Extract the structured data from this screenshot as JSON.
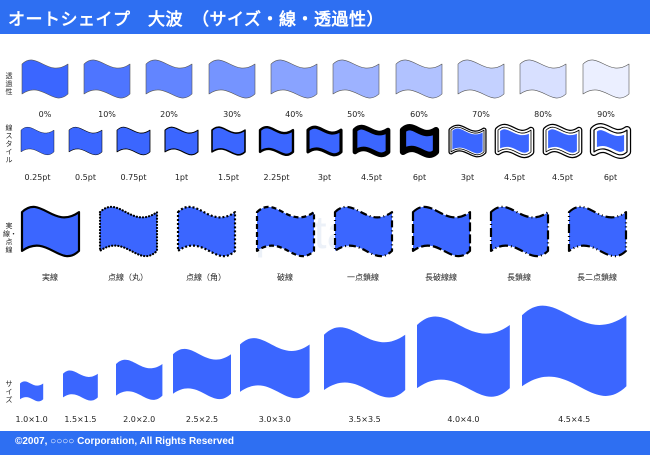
{
  "header": {
    "title": "オートシェイプ　大波　（サイズ・線・透過性）"
  },
  "row_labels": {
    "transparency": "透過性",
    "line_style": "線スタイル",
    "dash": "実線・点線",
    "size": "サイズ"
  },
  "colors": {
    "accent": "#2e6ff2",
    "fill": "#3b66ff",
    "outline": "#000000"
  },
  "transparency": {
    "labels": [
      "0%",
      "10%",
      "20%",
      "30%",
      "40%",
      "50%",
      "60%",
      "70%",
      "80%",
      "90%"
    ],
    "values": [
      0,
      10,
      20,
      30,
      40,
      50,
      60,
      70,
      80,
      90
    ]
  },
  "line_styles": {
    "labels": [
      "0.25pt",
      "0.5pt",
      "0.75pt",
      "1pt",
      "1.5pt",
      "2.25pt",
      "3pt",
      "4.5pt",
      "6pt",
      "3pt",
      "4.5pt",
      "4.5pt",
      "6pt"
    ],
    "values": [
      0.25,
      0.5,
      0.75,
      1,
      1.5,
      2.25,
      3,
      4.5,
      6,
      3,
      4.5,
      4.5,
      6
    ]
  },
  "dash_styles": {
    "labels": [
      "実線",
      "点線（丸）",
      "点線（角）",
      "破線",
      "一点鎖線",
      "長破線線",
      "長鎖線",
      "長二点鎖線"
    ]
  },
  "sizes": {
    "labels": [
      "1.0×1.0",
      "1.5×1.5",
      "2.0×2.0",
      "2.5×2.5",
      "3.0×3.0",
      "3.5×3.5",
      "4.0×4.0",
      "4.5×4.5"
    ],
    "values": [
      1.0,
      1.5,
      2.0,
      2.5,
      3.0,
      3.5,
      4.0,
      4.5
    ]
  },
  "footer": {
    "copyright": "©2007, ○○○○ Corporation, All Rights Reserved"
  }
}
